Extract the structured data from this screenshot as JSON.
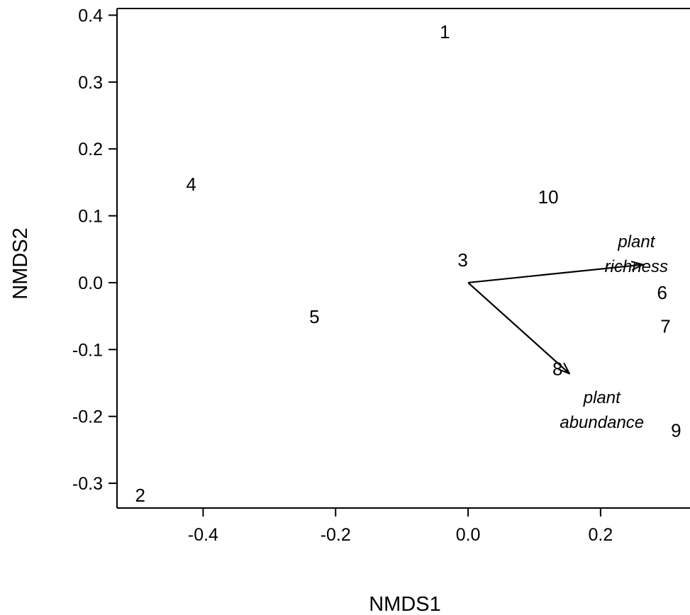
{
  "chart_data": {
    "type": "scatter",
    "xlabel": "NMDS1",
    "ylabel": "NMDS2",
    "xlim": [
      -0.53,
      0.335
    ],
    "ylim": [
      -0.337,
      0.41
    ],
    "x_ticks": [
      {
        "value": -0.4,
        "label": "-0.4"
      },
      {
        "value": -0.2,
        "label": "-0.2"
      },
      {
        "value": 0.0,
        "label": "0.0"
      },
      {
        "value": 0.2,
        "label": "0.2"
      }
    ],
    "y_ticks": [
      {
        "value": 0.4,
        "label": "0.4"
      },
      {
        "value": 0.3,
        "label": "0.3"
      },
      {
        "value": 0.2,
        "label": "0.2"
      },
      {
        "value": 0.1,
        "label": "0.1"
      },
      {
        "value": 0.0,
        "label": "0.0"
      },
      {
        "value": -0.1,
        "label": "-0.1"
      },
      {
        "value": -0.2,
        "label": "-0.2"
      },
      {
        "value": -0.3,
        "label": "-0.3"
      }
    ],
    "grid": false,
    "points": [
      {
        "label": "1",
        "x": -0.035,
        "y": 0.375
      },
      {
        "label": "2",
        "x": -0.495,
        "y": -0.318
      },
      {
        "label": "3",
        "x": -0.008,
        "y": 0.034
      },
      {
        "label": "4",
        "x": -0.418,
        "y": 0.147
      },
      {
        "label": "5",
        "x": -0.232,
        "y": -0.051
      },
      {
        "label": "6",
        "x": 0.293,
        "y": -0.015
      },
      {
        "label": "7",
        "x": 0.298,
        "y": -0.065
      },
      {
        "label": "8",
        "x": 0.135,
        "y": -0.129
      },
      {
        "label": "9",
        "x": 0.314,
        "y": -0.221
      },
      {
        "label": "10",
        "x": 0.121,
        "y": 0.128
      }
    ],
    "vectors": [
      {
        "label_lines": [
          "plant",
          "richness"
        ],
        "x": 0.264,
        "y": 0.027,
        "label_x": 0.254,
        "label_y": 0.053
      },
      {
        "label_lines": [
          "plant",
          "abundance"
        ],
        "x": 0.153,
        "y": -0.136,
        "label_x": 0.202,
        "label_y": -0.18
      }
    ],
    "colors": {
      "axes": "#000000",
      "text": "#000000",
      "background": "#ffffff"
    }
  }
}
